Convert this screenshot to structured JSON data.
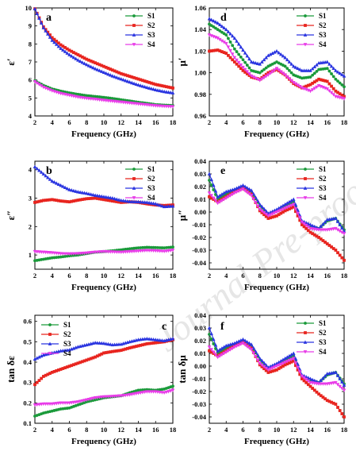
{
  "watermark": "Journal Pre-proof",
  "colors": {
    "S1": "#1a9a3a",
    "S2": "#e8251f",
    "S3": "#2a35e0",
    "S4": "#e83ce8"
  },
  "chart_data": [
    {
      "id": "a",
      "type": "line",
      "letter": "a",
      "xlabel": "Frequency (GHz)",
      "ylabel": "ε′",
      "xlim": [
        2,
        18
      ],
      "ylim": [
        4,
        10
      ],
      "xticks": [
        "2",
        "4",
        "6",
        "8",
        "10",
        "12",
        "14",
        "16",
        "18"
      ],
      "yticks": [
        "4",
        "5",
        "6",
        "7",
        "8",
        "9",
        "10"
      ],
      "legend": "top-right",
      "x": [
        2,
        3,
        4,
        5,
        6,
        7,
        8,
        9,
        10,
        11,
        12,
        13,
        14,
        15,
        16,
        17,
        18
      ],
      "series": [
        {
          "name": "S1",
          "values": [
            5.95,
            5.7,
            5.5,
            5.38,
            5.28,
            5.2,
            5.13,
            5.08,
            5.03,
            4.97,
            4.9,
            4.83,
            4.76,
            4.7,
            4.63,
            4.6,
            4.58
          ]
        },
        {
          "name": "S2",
          "values": [
            9.95,
            8.95,
            8.35,
            7.95,
            7.65,
            7.4,
            7.15,
            6.95,
            6.75,
            6.55,
            6.35,
            6.2,
            6.05,
            5.9,
            5.75,
            5.65,
            5.55
          ]
        },
        {
          "name": "S3",
          "values": [
            9.95,
            8.9,
            8.2,
            7.75,
            7.4,
            7.1,
            6.85,
            6.62,
            6.42,
            6.22,
            6.05,
            5.88,
            5.72,
            5.58,
            5.45,
            5.35,
            5.28
          ]
        },
        {
          "name": "S4",
          "values": [
            5.9,
            5.6,
            5.4,
            5.25,
            5.15,
            5.05,
            4.98,
            4.93,
            4.87,
            4.82,
            4.77,
            4.72,
            4.67,
            4.62,
            4.57,
            4.54,
            4.52
          ]
        }
      ]
    },
    {
      "id": "d",
      "type": "line",
      "letter": "d",
      "xlabel": "Frequency (GHz)",
      "ylabel": "μ′",
      "xlim": [
        2,
        18
      ],
      "ylim": [
        0.96,
        1.06
      ],
      "xticks": [
        "2",
        "4",
        "6",
        "8",
        "10",
        "12",
        "14",
        "16",
        "18"
      ],
      "yticks": [
        "0.96",
        "0.98",
        "1.00",
        "1.02",
        "1.04",
        "1.06"
      ],
      "legend": "top-right",
      "x": [
        2,
        3,
        4,
        5,
        6,
        7,
        8,
        9,
        10,
        11,
        12,
        13,
        14,
        15,
        16,
        17,
        18
      ],
      "series": [
        {
          "name": "S1",
          "values": [
            1.045,
            1.04,
            1.035,
            1.022,
            1.012,
            1.002,
            1.0,
            1.006,
            1.01,
            1.006,
            0.998,
            0.995,
            0.996,
            1.003,
            1.004,
            0.994,
            0.987
          ]
        },
        {
          "name": "S2",
          "values": [
            1.02,
            1.021,
            1.018,
            1.01,
            1.002,
            0.996,
            0.994,
            1.0,
            1.003,
            0.998,
            0.99,
            0.986,
            0.989,
            0.994,
            0.992,
            0.983,
            0.978
          ]
        },
        {
          "name": "S3",
          "values": [
            1.05,
            1.046,
            1.04,
            1.032,
            1.021,
            1.01,
            1.008,
            1.016,
            1.02,
            1.014,
            1.006,
            1.002,
            1.002,
            1.009,
            1.01,
            1.002,
            0.997
          ]
        },
        {
          "name": "S4",
          "values": [
            1.035,
            1.032,
            1.027,
            1.014,
            1.005,
            0.997,
            0.993,
            0.998,
            1.004,
            0.998,
            0.991,
            0.986,
            0.983,
            0.988,
            0.985,
            0.978,
            0.976
          ]
        }
      ]
    },
    {
      "id": "b",
      "type": "line",
      "letter": "b",
      "xlabel": "Frequency (GHz)",
      "ylabel": "ε″",
      "xlim": [
        2,
        18
      ],
      "ylim": [
        0.5,
        4.3
      ],
      "xticks": [
        "2",
        "4",
        "6",
        "8",
        "10",
        "12",
        "14",
        "16",
        "18"
      ],
      "yticks": [
        "1",
        "2",
        "3",
        "4"
      ],
      "legend": "top-right",
      "x": [
        2,
        3,
        4,
        5,
        6,
        7,
        8,
        9,
        10,
        11,
        12,
        13,
        14,
        15,
        16,
        17,
        18
      ],
      "series": [
        {
          "name": "S1",
          "values": [
            0.8,
            0.85,
            0.9,
            0.93,
            0.97,
            1.0,
            1.05,
            1.1,
            1.12,
            1.15,
            1.18,
            1.22,
            1.25,
            1.27,
            1.26,
            1.25,
            1.28
          ]
        },
        {
          "name": "S2",
          "values": [
            2.85,
            2.92,
            2.95,
            2.9,
            2.87,
            2.93,
            2.98,
            3.0,
            2.95,
            2.9,
            2.85,
            2.87,
            2.85,
            2.8,
            2.76,
            2.74,
            2.76
          ]
        },
        {
          "name": "S3",
          "values": [
            4.1,
            3.85,
            3.6,
            3.45,
            3.3,
            3.22,
            3.17,
            3.1,
            3.05,
            3.0,
            2.92,
            2.88,
            2.87,
            2.85,
            2.8,
            2.7,
            2.72
          ]
        },
        {
          "name": "S4",
          "values": [
            1.12,
            1.1,
            1.08,
            1.05,
            1.04,
            1.05,
            1.07,
            1.1,
            1.12,
            1.11,
            1.1,
            1.12,
            1.14,
            1.16,
            1.15,
            1.13,
            1.17
          ]
        }
      ]
    },
    {
      "id": "e",
      "type": "line",
      "letter": "e",
      "xlabel": "Frequency (GHz)",
      "ylabel": "μ″",
      "xlim": [
        2,
        18
      ],
      "ylim": [
        -0.045,
        0.04
      ],
      "xticks": [
        "2",
        "4",
        "6",
        "8",
        "10",
        "12",
        "14",
        "16",
        "18"
      ],
      "yticks": [
        "-0.04",
        "-0.03",
        "-0.02",
        "-0.01",
        "0.00",
        "0.01",
        "0.02",
        "0.03",
        "0.04"
      ],
      "legend": "top-right",
      "x": [
        2,
        3,
        4,
        5,
        6,
        7,
        8,
        9,
        10,
        11,
        12,
        13,
        14,
        15,
        16,
        17,
        18
      ],
      "series": [
        {
          "name": "S1",
          "values": [
            0.025,
            0.01,
            0.014,
            0.017,
            0.02,
            0.016,
            0.005,
            -0.002,
            0.001,
            0.005,
            0.008,
            -0.008,
            -0.011,
            -0.013,
            -0.007,
            -0.005,
            -0.014
          ]
        },
        {
          "name": "S2",
          "values": [
            0.012,
            0.008,
            0.012,
            0.016,
            0.019,
            0.014,
            0.001,
            -0.005,
            -0.003,
            0.001,
            0.004,
            -0.01,
            -0.016,
            -0.02,
            -0.025,
            -0.03,
            -0.038
          ]
        },
        {
          "name": "S3",
          "values": [
            0.03,
            0.012,
            0.016,
            0.018,
            0.021,
            0.017,
            0.006,
            -0.001,
            0.002,
            0.006,
            0.01,
            -0.007,
            -0.01,
            -0.013,
            -0.006,
            -0.005,
            -0.015
          ]
        },
        {
          "name": "S4",
          "values": [
            0.015,
            0.007,
            0.011,
            0.015,
            0.018,
            0.013,
            0.002,
            -0.003,
            0.0,
            0.003,
            0.006,
            -0.008,
            -0.013,
            -0.014,
            -0.014,
            -0.013,
            -0.017
          ]
        }
      ]
    },
    {
      "id": "c",
      "type": "line",
      "letter": "c",
      "xlabel": "Frequency (GHz)",
      "ylabel": "tan δε",
      "xlim": [
        2,
        18
      ],
      "ylim": [
        0.1,
        0.63
      ],
      "xticks": [
        "2",
        "4",
        "6",
        "8",
        "10",
        "12",
        "14",
        "16",
        "18"
      ],
      "yticks": [
        "0.1",
        "0.2",
        "0.3",
        "0.4",
        "0.5",
        "0.6"
      ],
      "legend": "top-left",
      "x": [
        2,
        3,
        4,
        5,
        6,
        7,
        8,
        9,
        10,
        11,
        12,
        13,
        14,
        15,
        16,
        17,
        18
      ],
      "series": [
        {
          "name": "S1",
          "values": [
            0.135,
            0.15,
            0.16,
            0.17,
            0.175,
            0.19,
            0.205,
            0.215,
            0.225,
            0.23,
            0.235,
            0.25,
            0.262,
            0.265,
            0.262,
            0.268,
            0.282
          ]
        },
        {
          "name": "S2",
          "values": [
            0.29,
            0.33,
            0.35,
            0.365,
            0.38,
            0.395,
            0.41,
            0.425,
            0.445,
            0.452,
            0.458,
            0.47,
            0.48,
            0.49,
            0.495,
            0.5,
            0.51
          ]
        },
        {
          "name": "S3",
          "values": [
            0.415,
            0.435,
            0.445,
            0.455,
            0.46,
            0.475,
            0.485,
            0.495,
            0.492,
            0.485,
            0.488,
            0.5,
            0.51,
            0.515,
            0.51,
            0.505,
            0.515
          ]
        },
        {
          "name": "S4",
          "values": [
            0.19,
            0.195,
            0.195,
            0.2,
            0.2,
            0.205,
            0.215,
            0.225,
            0.23,
            0.232,
            0.235,
            0.24,
            0.248,
            0.255,
            0.255,
            0.25,
            0.262
          ]
        }
      ]
    },
    {
      "id": "f",
      "type": "line",
      "letter": "f",
      "xlabel": "Frequency (GHz)",
      "ylabel": "tan δμ",
      "xlim": [
        2,
        18
      ],
      "ylim": [
        -0.045,
        0.04
      ],
      "xticks": [
        "2",
        "4",
        "6",
        "8",
        "10",
        "12",
        "14",
        "16",
        "18"
      ],
      "yticks": [
        "-0.04",
        "-0.03",
        "-0.02",
        "-0.01",
        "0.00",
        "0.01",
        "0.02",
        "0.03",
        "0.04"
      ],
      "legend": "top-right",
      "x": [
        2,
        3,
        4,
        5,
        6,
        7,
        8,
        9,
        10,
        11,
        12,
        13,
        14,
        15,
        16,
        17,
        18
      ],
      "series": [
        {
          "name": "S1",
          "values": [
            0.025,
            0.01,
            0.014,
            0.017,
            0.02,
            0.016,
            0.005,
            -0.002,
            0.001,
            0.005,
            0.008,
            -0.008,
            -0.011,
            -0.013,
            -0.007,
            -0.005,
            -0.014
          ]
        },
        {
          "name": "S2",
          "values": [
            0.012,
            0.008,
            0.012,
            0.016,
            0.019,
            0.014,
            0.001,
            -0.005,
            -0.003,
            0.001,
            0.004,
            -0.01,
            -0.016,
            -0.022,
            -0.027,
            -0.03,
            -0.04
          ]
        },
        {
          "name": "S3",
          "values": [
            0.03,
            0.012,
            0.016,
            0.018,
            0.021,
            0.017,
            0.006,
            -0.001,
            0.002,
            0.006,
            0.01,
            -0.007,
            -0.01,
            -0.013,
            -0.006,
            -0.005,
            -0.015
          ]
        },
        {
          "name": "S4",
          "values": [
            0.015,
            0.007,
            0.011,
            0.015,
            0.018,
            0.013,
            0.002,
            -0.003,
            0.0,
            0.003,
            0.006,
            -0.008,
            -0.013,
            -0.014,
            -0.014,
            -0.013,
            -0.019
          ]
        }
      ]
    }
  ]
}
